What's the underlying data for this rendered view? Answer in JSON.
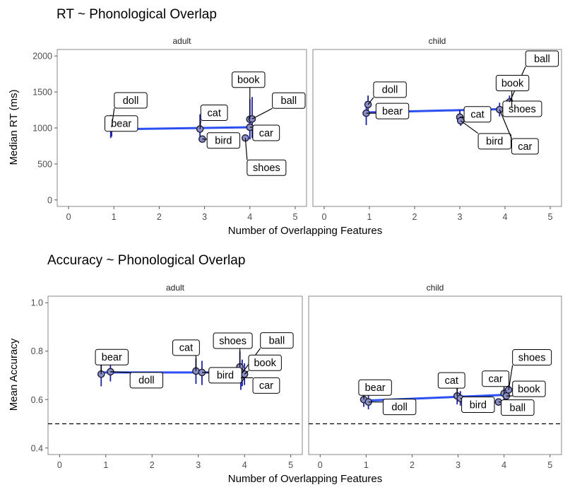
{
  "chart_data": [
    {
      "type": "scatter",
      "title": "RT ~ Phonological Overlap",
      "xlabel": "Number of Overlapping Features",
      "ylabel": "Median RT (ms)",
      "xlim": [
        0,
        5
      ],
      "ylim": [
        0,
        2000
      ],
      "x_ticks": [
        "0",
        "1",
        "2",
        "3",
        "4",
        "5"
      ],
      "y_ticks": [
        "0",
        "500",
        "1000",
        "1500",
        "2000"
      ],
      "grid": false,
      "point_color": "#8b8fc4",
      "errorbar_color": "#1a1fa8",
      "fit_color": "#2b4ef0",
      "panels": [
        {
          "facet": "adult",
          "fit": {
            "x": [
              0.9,
              4.05
            ],
            "y": [
              980,
              1010
            ]
          },
          "points": [
            {
              "label": "bear",
              "x": 0.93,
              "y": 1003,
              "ymin": 860,
              "ymax": 1180
            },
            {
              "label": "doll",
              "x": 0.95,
              "y": 1010,
              "ymin": 880,
              "ymax": 1140
            },
            {
              "label": "cat",
              "x": 2.9,
              "y": 985,
              "ymin": 860,
              "ymax": 1190
            },
            {
              "label": "bird",
              "x": 2.95,
              "y": 845,
              "ymin": 800,
              "ymax": 890
            },
            {
              "label": "shoes",
              "x": 3.9,
              "y": 860,
              "ymin": 820,
              "ymax": 900
            },
            {
              "label": "car",
              "x": 4.0,
              "y": 1010,
              "ymin": 850,
              "ymax": 1150
            },
            {
              "label": "book",
              "x": 4.0,
              "y": 1120,
              "ymin": 840,
              "ymax": 1400
            },
            {
              "label": "ball",
              "x": 4.05,
              "y": 1125,
              "ymin": 860,
              "ymax": 1430
            }
          ]
        },
        {
          "facet": "child",
          "fit": {
            "x": [
              0.9,
              4.15
            ],
            "y": [
              1215,
              1265
            ]
          },
          "points": [
            {
              "label": "bear",
              "x": 0.93,
              "y": 1205,
              "ymin": 1040,
              "ymax": 1370
            },
            {
              "label": "doll",
              "x": 0.97,
              "y": 1325,
              "ymin": 1200,
              "ymax": 1450
            },
            {
              "label": "cat",
              "x": 3.0,
              "y": 1150,
              "ymin": 1050,
              "ymax": 1250
            },
            {
              "label": "bird",
              "x": 3.02,
              "y": 1100,
              "ymin": 1030,
              "ymax": 1170
            },
            {
              "label": "car",
              "x": 3.88,
              "y": 1255,
              "ymin": 1160,
              "ymax": 1350
            },
            {
              "label": "shoes",
              "x": 4.1,
              "y": 1265,
              "ymin": 1200,
              "ymax": 1330
            },
            {
              "label": "ball",
              "x": 4.1,
              "y": 1360,
              "ymin": 1270,
              "ymax": 1450
            },
            {
              "label": "book",
              "x": 4.15,
              "y": 1280,
              "ymin": 1210,
              "ymax": 1350
            }
          ]
        }
      ]
    },
    {
      "type": "scatter",
      "title": "Accuracy ~ Phonological Overlap",
      "xlabel": "Number of Overlapping Features",
      "ylabel": "Mean Accuracy",
      "xlim": [
        0,
        5
      ],
      "ylim": [
        0.4,
        1.0
      ],
      "x_ticks": [
        "0",
        "1",
        "2",
        "3",
        "4",
        "5"
      ],
      "y_ticks": [
        "0.4",
        "0.6",
        "0.8",
        "1.0"
      ],
      "grid": false,
      "reference_line": 0.5,
      "point_color": "#8b8fc4",
      "errorbar_color": "#1a1fa8",
      "fit_color": "#2b4ef0",
      "panels": [
        {
          "facet": "adult",
          "fit": {
            "x": [
              0.9,
              4.05
            ],
            "y": [
              0.712,
              0.712
            ]
          },
          "points": [
            {
              "label": "bear",
              "x": 0.9,
              "y": 0.705,
              "ymin": 0.655,
              "ymax": 0.755
            },
            {
              "label": "doll",
              "x": 1.1,
              "y": 0.715,
              "ymin": 0.675,
              "ymax": 0.755
            },
            {
              "label": "cat",
              "x": 2.95,
              "y": 0.718,
              "ymin": 0.665,
              "ymax": 0.77
            },
            {
              "label": "bird",
              "x": 3.08,
              "y": 0.712,
              "ymin": 0.66,
              "ymax": 0.76
            },
            {
              "label": "shoes",
              "x": 3.9,
              "y": 0.735,
              "ymin": 0.675,
              "ymax": 0.8
            },
            {
              "label": "car",
              "x": 3.92,
              "y": 0.69,
              "ymin": 0.64,
              "ymax": 0.74
            },
            {
              "label": "ball",
              "x": 3.95,
              "y": 0.71,
              "ymin": 0.655,
              "ymax": 0.765
            },
            {
              "label": "book",
              "x": 4.0,
              "y": 0.705,
              "ymin": 0.66,
              "ymax": 0.75
            }
          ]
        },
        {
          "facet": "child",
          "fit": {
            "x": [
              0.9,
              4.1
            ],
            "y": [
              0.595,
              0.62
            ]
          },
          "points": [
            {
              "label": "bear",
              "x": 0.95,
              "y": 0.6,
              "ymin": 0.57,
              "ymax": 0.63
            },
            {
              "label": "doll",
              "x": 1.05,
              "y": 0.59,
              "ymin": 0.56,
              "ymax": 0.62
            },
            {
              "label": "cat",
              "x": 2.98,
              "y": 0.615,
              "ymin": 0.58,
              "ymax": 0.65
            },
            {
              "label": "bird",
              "x": 3.05,
              "y": 0.605,
              "ymin": 0.575,
              "ymax": 0.635
            },
            {
              "label": "ball",
              "x": 3.88,
              "y": 0.59,
              "ymin": 0.575,
              "ymax": 0.605
            },
            {
              "label": "car",
              "x": 4.0,
              "y": 0.625,
              "ymin": 0.6,
              "ymax": 0.65
            },
            {
              "label": "book",
              "x": 4.05,
              "y": 0.615,
              "ymin": 0.59,
              "ymax": 0.64
            },
            {
              "label": "shoes",
              "x": 4.1,
              "y": 0.64,
              "ymin": 0.615,
              "ymax": 0.665
            }
          ]
        }
      ]
    }
  ]
}
